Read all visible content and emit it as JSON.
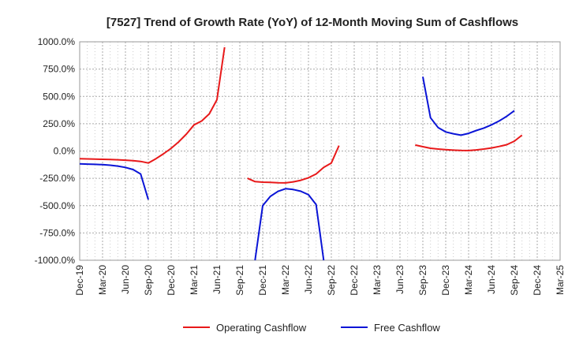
{
  "chart_data": {
    "type": "line",
    "title": "[7527]  Trend of Growth Rate (YoY) of 12-Month Moving Sum of Cashflows",
    "xlabel": "",
    "ylabel": "",
    "ylim": [
      -1000,
      1000
    ],
    "y_ticks": [
      "1000.0%",
      "750.0%",
      "500.0%",
      "250.0%",
      "0.0%",
      "-250.0%",
      "-500.0%",
      "-750.0%",
      "-1000.0%"
    ],
    "y_tick_values": [
      1000,
      750,
      500,
      250,
      0,
      -250,
      -500,
      -750,
      -1000
    ],
    "x_ticks": [
      "Dec-19",
      "Mar-20",
      "Jun-20",
      "Sep-20",
      "Dec-20",
      "Mar-21",
      "Jun-21",
      "Sep-21",
      "Dec-21",
      "Mar-22",
      "Jun-22",
      "Sep-22",
      "Dec-22",
      "Mar-23",
      "Jun-23",
      "Sep-23",
      "Dec-23",
      "Mar-24",
      "Jun-24",
      "Sep-24",
      "Dec-24",
      "Mar-25"
    ],
    "grid": true,
    "legend_position": "bottom",
    "series": [
      {
        "name": "Operating Cashflow",
        "color": "#e8191a",
        "points": [
          [
            "2019-12",
            -70
          ],
          [
            "2020-01",
            -72
          ],
          [
            "2020-02",
            -74
          ],
          [
            "2020-03",
            -76
          ],
          [
            "2020-04",
            -78
          ],
          [
            "2020-05",
            -80
          ],
          [
            "2020-06",
            -84
          ],
          [
            "2020-07",
            -88
          ],
          [
            "2020-08",
            -95
          ],
          [
            "2020-09",
            -110
          ],
          [
            "2020-10",
            -70
          ],
          [
            "2020-11",
            -25
          ],
          [
            "2020-12",
            25
          ],
          [
            "2021-01",
            85
          ],
          [
            "2021-02",
            155
          ],
          [
            "2021-03",
            240
          ],
          [
            "2021-04",
            275
          ],
          [
            "2021-05",
            340
          ],
          [
            "2021-06",
            470
          ],
          [
            "2021-07",
            950
          ],
          null,
          [
            "2021-10",
            -250
          ],
          [
            "2021-11",
            -280
          ],
          [
            "2021-12",
            -285
          ],
          [
            "2022-01",
            -287
          ],
          [
            "2022-02",
            -290
          ],
          [
            "2022-03",
            -292
          ],
          [
            "2022-04",
            -282
          ],
          [
            "2022-05",
            -268
          ],
          [
            "2022-06",
            -245
          ],
          [
            "2022-07",
            -210
          ],
          [
            "2022-08",
            -150
          ],
          [
            "2022-09",
            -110
          ],
          [
            "2022-10",
            50
          ],
          null,
          [
            "2023-08",
            55
          ],
          [
            "2023-09",
            40
          ],
          [
            "2023-10",
            25
          ],
          [
            "2023-11",
            18
          ],
          [
            "2023-12",
            12
          ],
          [
            "2024-01",
            8
          ],
          [
            "2024-02",
            5
          ],
          [
            "2024-03",
            4
          ],
          [
            "2024-04",
            10
          ],
          [
            "2024-05",
            18
          ],
          [
            "2024-06",
            28
          ],
          [
            "2024-07",
            42
          ],
          [
            "2024-08",
            58
          ],
          [
            "2024-09",
            90
          ],
          [
            "2024-10",
            145
          ]
        ]
      },
      {
        "name": "Free Cashflow",
        "color": "#0a14d6",
        "points": [
          [
            "2019-12",
            -118
          ],
          [
            "2020-01",
            -120
          ],
          [
            "2020-02",
            -122
          ],
          [
            "2020-03",
            -125
          ],
          [
            "2020-04",
            -130
          ],
          [
            "2020-05",
            -138
          ],
          [
            "2020-06",
            -150
          ],
          [
            "2020-07",
            -170
          ],
          [
            "2020-08",
            -210
          ],
          [
            "2020-09",
            -445
          ],
          null,
          [
            "2021-11",
            -1000
          ],
          [
            "2021-12",
            -500
          ],
          [
            "2022-01",
            -415
          ],
          [
            "2022-02",
            -370
          ],
          [
            "2022-03",
            -345
          ],
          [
            "2022-04",
            -352
          ],
          [
            "2022-05",
            -368
          ],
          [
            "2022-06",
            -400
          ],
          [
            "2022-07",
            -490
          ],
          [
            "2022-08",
            -1000
          ],
          null,
          [
            "2023-09",
            680
          ],
          [
            "2023-10",
            305
          ],
          [
            "2023-11",
            215
          ],
          [
            "2023-12",
            175
          ],
          [
            "2024-01",
            158
          ],
          [
            "2024-02",
            145
          ],
          [
            "2024-03",
            162
          ],
          [
            "2024-04",
            188
          ],
          [
            "2024-05",
            210
          ],
          [
            "2024-06",
            240
          ],
          [
            "2024-07",
            275
          ],
          [
            "2024-08",
            318
          ],
          [
            "2024-09",
            370
          ]
        ]
      }
    ]
  }
}
